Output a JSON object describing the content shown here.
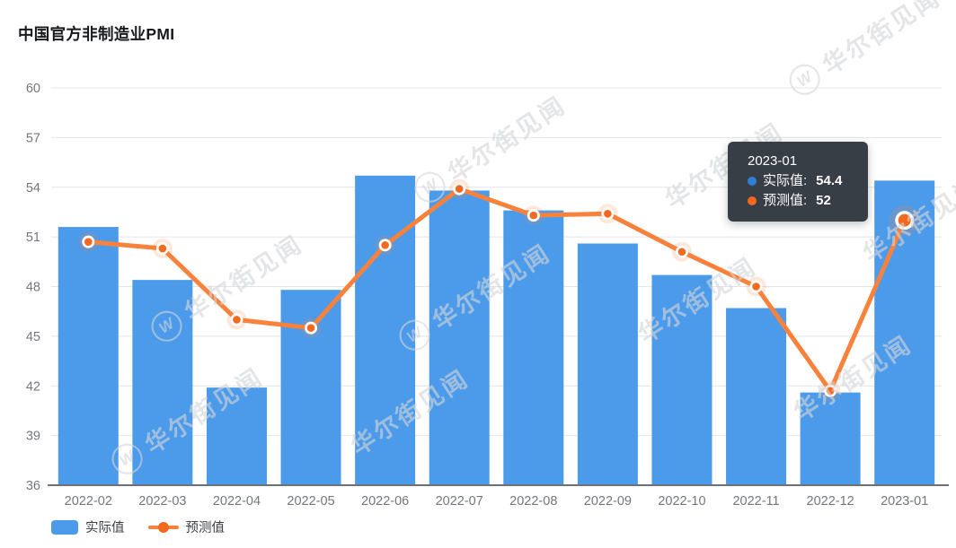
{
  "page": {
    "title": "中国官方非制造业PMI"
  },
  "watermark": {
    "text": "华尔街见闻",
    "logo_letter": "W"
  },
  "colors": {
    "actual_bar": "#4c9bea",
    "forecast_line": "#f8823c",
    "forecast_point": "#f2691f",
    "tooltip_bg": "#30363e",
    "grid": "#e2e4e9",
    "axis": "#6e7079",
    "axis_label": "#73777d"
  },
  "tooltip": {
    "title": "2023-01",
    "items": [
      {
        "label": "实际值:",
        "value": "54.4",
        "series": "实际值"
      },
      {
        "label": "预测值:",
        "value": "52",
        "series": "预测值"
      }
    ]
  },
  "legend": [
    {
      "label": "实际值",
      "type": "bar"
    },
    {
      "label": "预测值",
      "type": "line"
    }
  ],
  "chart_data": {
    "type": "bar",
    "title": "中国官方非制造业PMI",
    "categories": [
      "2022-02",
      "2022-03",
      "2022-04",
      "2022-05",
      "2022-06",
      "2022-07",
      "2022-08",
      "2022-09",
      "2022-10",
      "2022-11",
      "2022-12",
      "2023-01"
    ],
    "series": [
      {
        "name": "实际值",
        "type": "bar",
        "color": "#4c9bea",
        "values": [
          51.6,
          48.4,
          41.9,
          47.8,
          54.7,
          53.8,
          52.6,
          50.6,
          48.7,
          46.7,
          41.6,
          54.4
        ]
      },
      {
        "name": "预测值",
        "type": "line",
        "color": "#f8823c",
        "point_color": "#f2691f",
        "values": [
          50.7,
          50.3,
          46.0,
          45.5,
          50.5,
          53.9,
          52.3,
          52.4,
          50.1,
          48.0,
          41.7,
          52.0
        ]
      }
    ],
    "xlabel": "",
    "ylabel": "",
    "ylim": [
      36,
      60
    ],
    "yticks": [
      36,
      39,
      42,
      45,
      48,
      51,
      54,
      57,
      60
    ],
    "grid": true,
    "legend_position": "bottom",
    "highlighted_category": "2023-01",
    "highlighted_index": 11
  }
}
